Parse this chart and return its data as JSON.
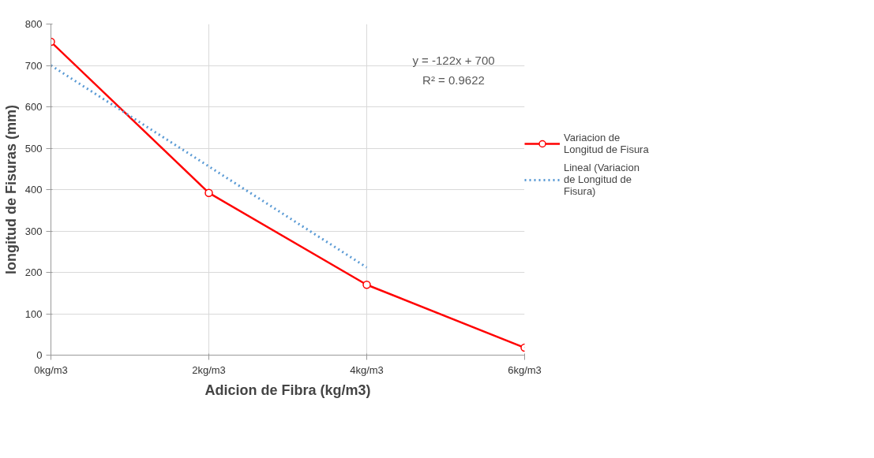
{
  "chart_data": {
    "type": "line",
    "xlabel": "Adicion de Fibra (kg/m3)",
    "ylabel": "longitud de Fisuras (mm)",
    "categories": [
      "0kg/m3",
      "2kg/m3",
      "4kg/m3",
      "6kg/m3"
    ],
    "ylim": [
      0,
      800
    ],
    "yticks": [
      0,
      100,
      200,
      300,
      400,
      500,
      600,
      700,
      800
    ],
    "series": [
      {
        "name": "Variacion de Longitud de Fisura",
        "color": "#ff0000",
        "values": [
          757,
          392,
          170,
          18
        ],
        "marker": "circle",
        "line_style": "solid"
      },
      {
        "name": "Lineal (Variacion de Longitud de Fisura)",
        "color": "#5b9bd5",
        "values": [
          700,
          456,
          212,
          null
        ],
        "marker": "none",
        "line_style": "dotted"
      }
    ],
    "annotations": [
      "y = -122x + 700",
      "R² = 0.9622"
    ],
    "grid": true,
    "legend": "right"
  }
}
